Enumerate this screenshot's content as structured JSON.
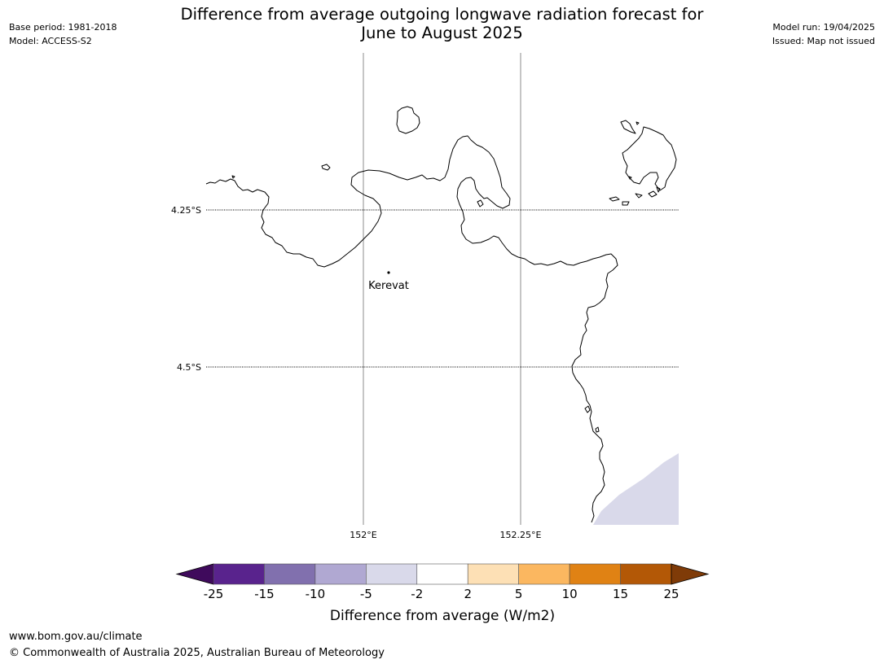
{
  "header": {
    "title_line1": "Difference from average outgoing longwave radiation forecast for",
    "title_line2": "June to August 2025",
    "base_period": "Base period: 1981-2018",
    "model": "Model: ACCESS-S2",
    "model_run": "Model run: 19/04/2025",
    "issued": "Issued: Map not issued"
  },
  "map": {
    "lon_labels": [
      "152°E",
      "152.25°E"
    ],
    "lat_labels": [
      "4.25°S",
      "4.5°S"
    ],
    "place": {
      "name": "Kerevat"
    }
  },
  "colorbar": {
    "label": "Difference from average (W/m2)",
    "ticks": [
      "-25",
      "-15",
      "-10",
      "-5",
      "-2",
      "2",
      "5",
      "10",
      "15",
      "25"
    ],
    "colors": [
      "#3f0a5c",
      "#59238d",
      "#8170ae",
      "#b0a8d2",
      "#d9d9ea",
      "#ffffff",
      "#fde0b5",
      "#fbb760",
      "#e08214",
      "#b35806",
      "#7f3b08"
    ]
  },
  "footer": {
    "url": "www.bom.gov.au/climate",
    "copyright": "© Commonwealth of Australia 2025, Australian Bureau of Meteorology"
  }
}
